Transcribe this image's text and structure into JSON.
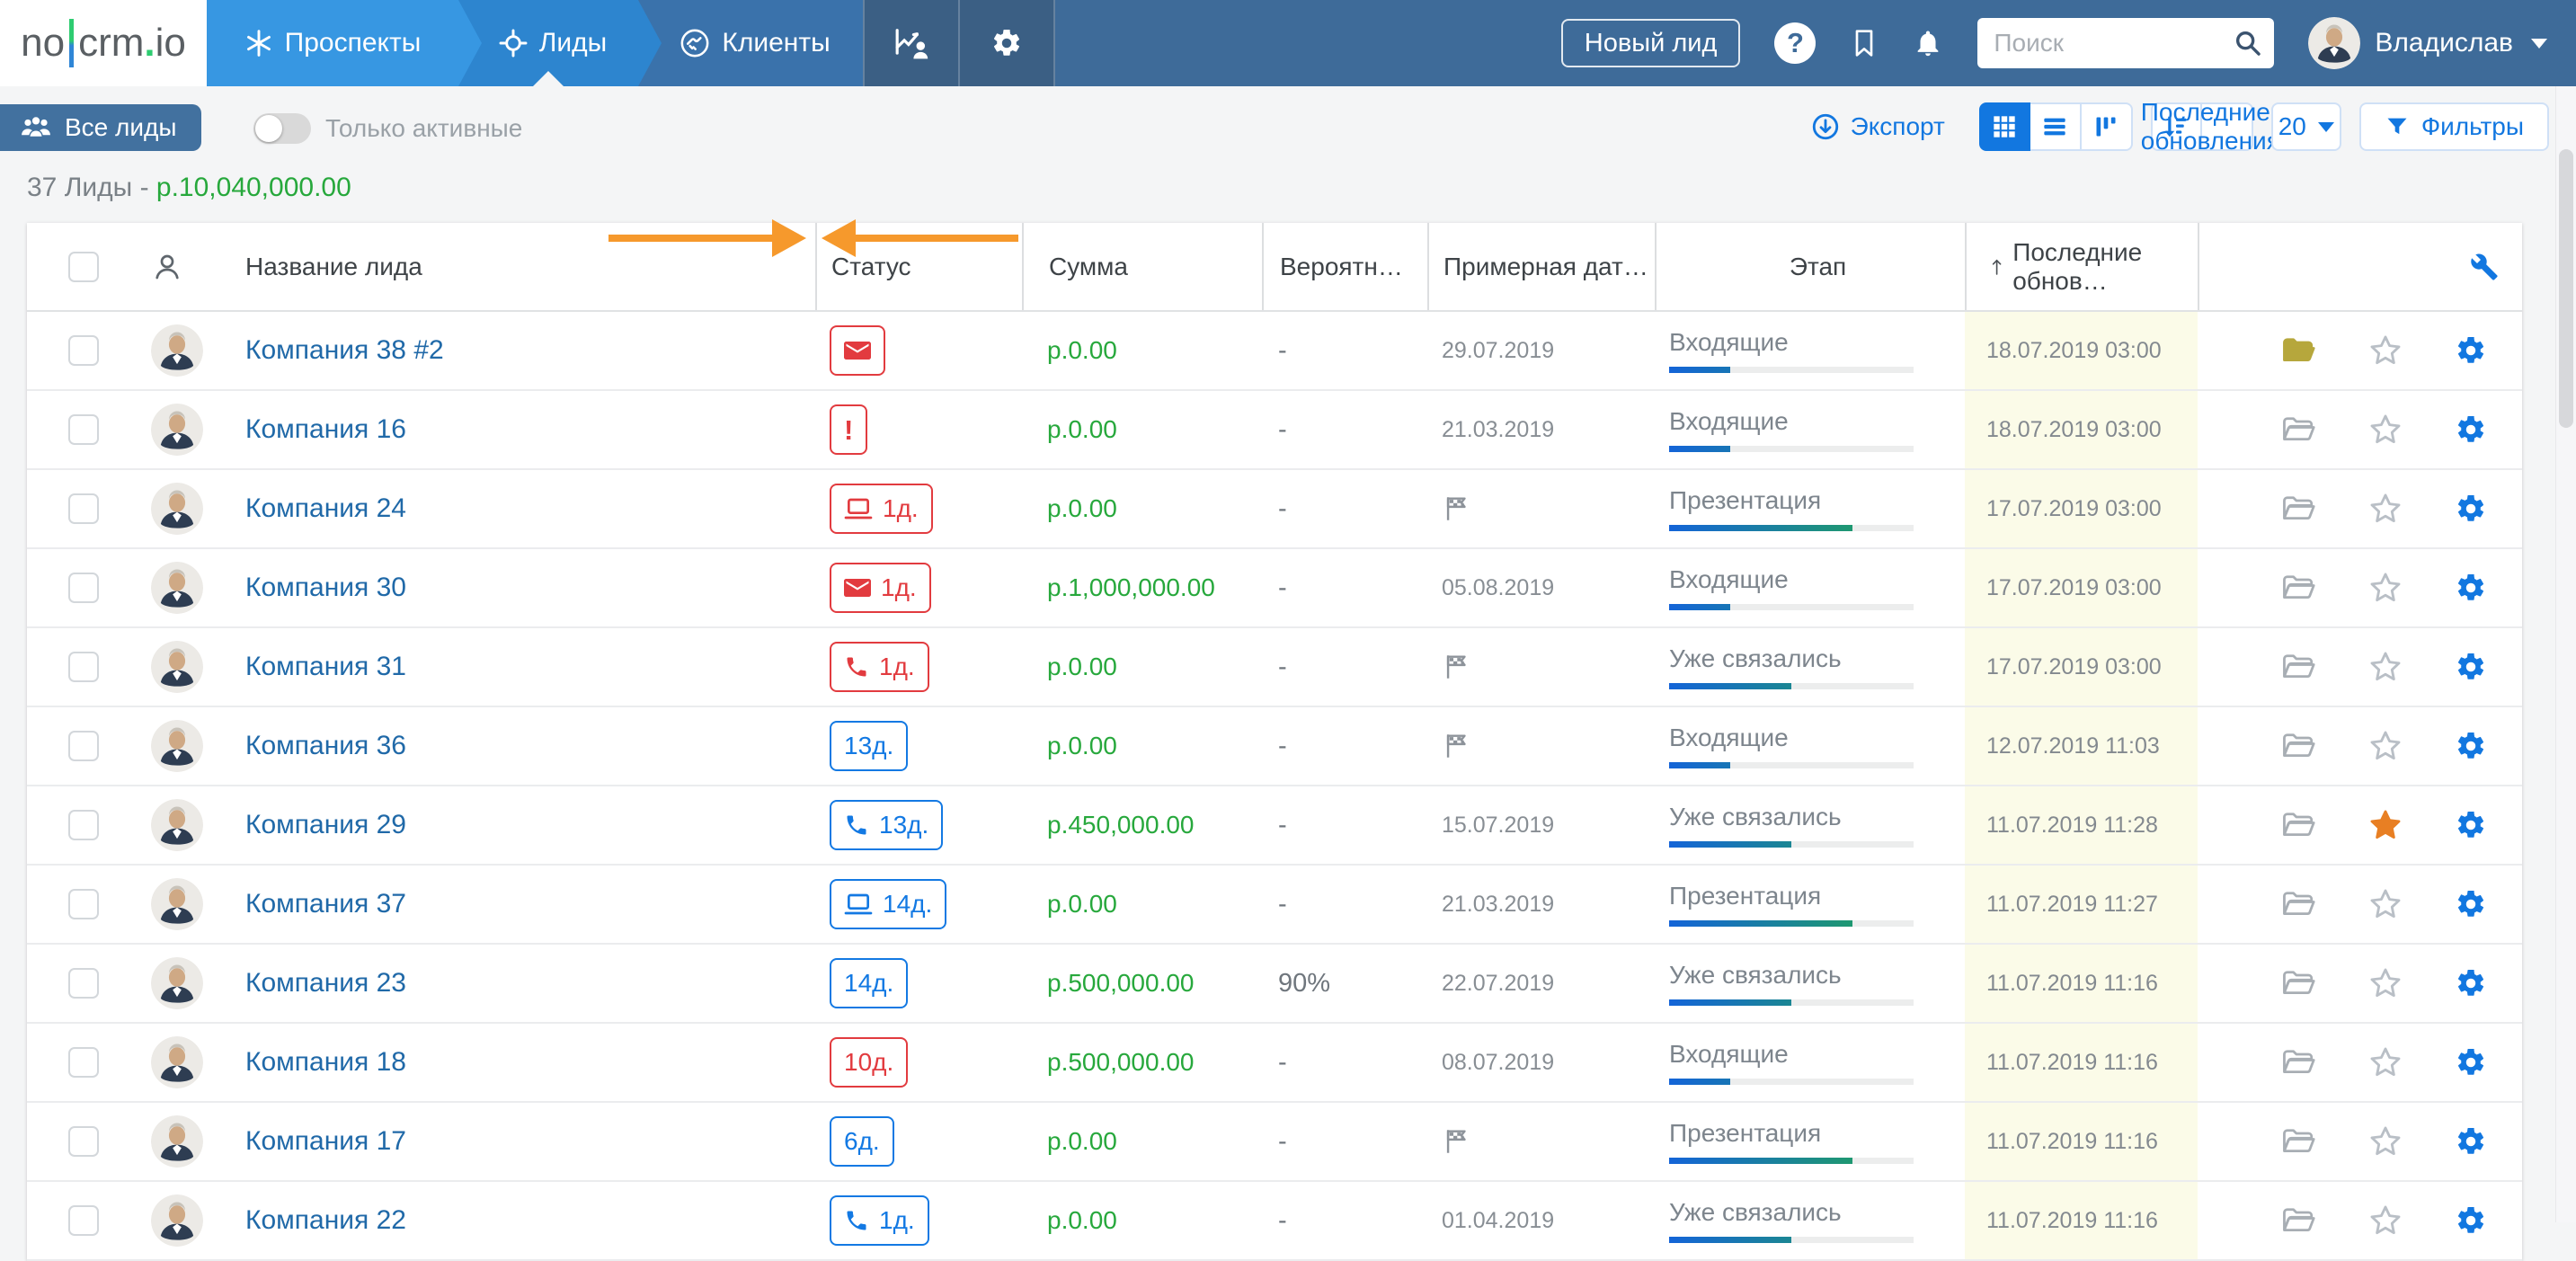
{
  "brand": {
    "part1": "no",
    "part2": "crm",
    "dot": ".",
    "part3": "io"
  },
  "nav": {
    "tabs": [
      {
        "label": "Проспекты"
      },
      {
        "label": "Лиды"
      },
      {
        "label": "Клиенты"
      }
    ],
    "new_lead_button": "Новый лид",
    "search_placeholder": "Поиск",
    "user_name": "Владислав"
  },
  "toolbar": {
    "all_leads": "Все лиды",
    "only_active": "Только активные",
    "export": "Экспорт",
    "sort_by": "Последние обновления",
    "page_size": "20",
    "filters": "Фильтры"
  },
  "summary": {
    "count": "37 Лиды",
    "dash": "-",
    "total": "р.10,040,000.00"
  },
  "table": {
    "headers": {
      "name": "Название лида",
      "status": "Статус",
      "amount": "Сумма",
      "probability": "Вероятн…",
      "expected": "Примерная дат…",
      "stage": "Этап",
      "updated": "Последние обнов…"
    },
    "rows": [
      {
        "name": "Компания 38 #2",
        "status_color": "red",
        "status_icon": "mail",
        "status_label": "",
        "amount": "р.0.00",
        "probability": "-",
        "expected": "29.07.2019",
        "expected_flag": false,
        "stage": "Входящие",
        "stage_progress": 25,
        "updated": "18.07.2019 03:00",
        "folder_filled": true,
        "starred": false
      },
      {
        "name": "Компания 16",
        "status_color": "red",
        "status_icon": "alert",
        "status_label": "",
        "amount": "р.0.00",
        "probability": "-",
        "expected": "21.03.2019",
        "expected_flag": false,
        "stage": "Входящие",
        "stage_progress": 25,
        "updated": "18.07.2019 03:00",
        "folder_filled": false,
        "starred": false
      },
      {
        "name": "Компания 24",
        "status_color": "red",
        "status_icon": "laptop",
        "status_label": "1д.",
        "amount": "р.0.00",
        "probability": "-",
        "expected": "",
        "expected_flag": true,
        "stage": "Презентация",
        "stage_progress": 75,
        "updated": "17.07.2019 03:00",
        "folder_filled": false,
        "starred": false
      },
      {
        "name": "Компания 30",
        "status_color": "red",
        "status_icon": "mail",
        "status_label": "1д.",
        "amount": "р.1,000,000.00",
        "probability": "-",
        "expected": "05.08.2019",
        "expected_flag": false,
        "stage": "Входящие",
        "stage_progress": 25,
        "updated": "17.07.2019 03:00",
        "folder_filled": false,
        "starred": false
      },
      {
        "name": "Компания 31",
        "status_color": "red",
        "status_icon": "phone",
        "status_label": "1д.",
        "amount": "р.0.00",
        "probability": "-",
        "expected": "",
        "expected_flag": true,
        "stage": "Уже связались",
        "stage_progress": 50,
        "updated": "17.07.2019 03:00",
        "folder_filled": false,
        "starred": false
      },
      {
        "name": "Компания 36",
        "status_color": "blue",
        "status_icon": "",
        "status_label": "13д.",
        "amount": "р.0.00",
        "probability": "-",
        "expected": "",
        "expected_flag": true,
        "stage": "Входящие",
        "stage_progress": 25,
        "updated": "12.07.2019 11:03",
        "folder_filled": false,
        "starred": false
      },
      {
        "name": "Компания 29",
        "status_color": "blue",
        "status_icon": "phone",
        "status_label": "13д.",
        "amount": "р.450,000.00",
        "probability": "-",
        "expected": "15.07.2019",
        "expected_flag": false,
        "stage": "Уже связались",
        "stage_progress": 50,
        "updated": "11.07.2019 11:28",
        "folder_filled": false,
        "starred": true
      },
      {
        "name": "Компания 37",
        "status_color": "blue",
        "status_icon": "laptop",
        "status_label": "14д.",
        "amount": "р.0.00",
        "probability": "-",
        "expected": "21.03.2019",
        "expected_flag": false,
        "stage": "Презентация",
        "stage_progress": 75,
        "updated": "11.07.2019 11:27",
        "folder_filled": false,
        "starred": false
      },
      {
        "name": "Компания 23",
        "status_color": "blue",
        "status_icon": "",
        "status_label": "14д.",
        "amount": "р.500,000.00",
        "probability": "90%",
        "expected": "22.07.2019",
        "expected_flag": false,
        "stage": "Уже связались",
        "stage_progress": 50,
        "updated": "11.07.2019 11:16",
        "folder_filled": false,
        "starred": false
      },
      {
        "name": "Компания 18",
        "status_color": "red",
        "status_icon": "",
        "status_label": "10д.",
        "amount": "р.500,000.00",
        "probability": "-",
        "expected": "08.07.2019",
        "expected_flag": false,
        "stage": "Входящие",
        "stage_progress": 25,
        "updated": "11.07.2019 11:16",
        "folder_filled": false,
        "starred": false
      },
      {
        "name": "Компания 17",
        "status_color": "blue",
        "status_icon": "",
        "status_label": "6д.",
        "amount": "р.0.00",
        "probability": "-",
        "expected": "",
        "expected_flag": true,
        "stage": "Презентация",
        "stage_progress": 75,
        "updated": "11.07.2019 11:16",
        "folder_filled": false,
        "starred": false
      },
      {
        "name": "Компания 22",
        "status_color": "blue",
        "status_icon": "phone",
        "status_label": "1д.",
        "amount": "р.0.00",
        "probability": "-",
        "expected": "01.04.2019",
        "expected_flag": false,
        "stage": "Уже связались",
        "stage_progress": 50,
        "updated": "11.07.2019 11:16",
        "folder_filled": false,
        "starred": false
      }
    ]
  },
  "colors": {
    "accent_blue": "#1277e0",
    "badge_red": "#e23b3f",
    "money_green": "#27a83c",
    "annotation_orange": "#f6992c",
    "updated_column_bg": "#fbfbe8"
  }
}
